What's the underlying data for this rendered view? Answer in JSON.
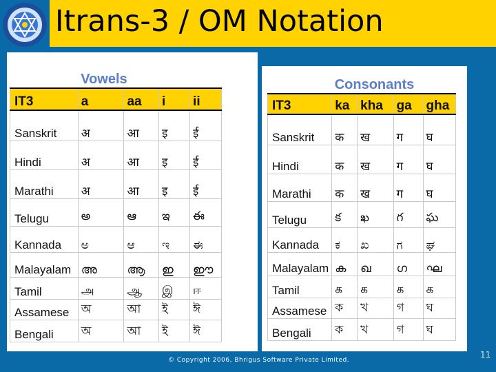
{
  "title": "Itrans-3 / OM Notation",
  "footer": "© Copyright 2006, Bhrigus Software Private Limited.",
  "page_number": "11",
  "vowels": {
    "heading": "Vowels",
    "rows": [
      {
        "label": "IT3",
        "cells": [
          "a",
          "aa",
          "i",
          "ii"
        ]
      },
      {
        "label": "Sanskrit",
        "cells": [
          "अ",
          "आ",
          "इ",
          "ई"
        ]
      },
      {
        "label": "Hindi",
        "cells": [
          "अ",
          "आ",
          "इ",
          "ई"
        ]
      },
      {
        "label": "Marathi",
        "cells": [
          "अ",
          "आ",
          "इ",
          "ई"
        ]
      },
      {
        "label": "Telugu",
        "cells": [
          "అ",
          "ఆ",
          "ఇ",
          "ఈ"
        ]
      },
      {
        "label": "Kannada",
        "cells": [
          "ಅ",
          "ಆ",
          "ಇ",
          "ಈ"
        ]
      },
      {
        "label": "Malayalam",
        "cells": [
          "അ",
          "ആ",
          "ഇ",
          "ഈ"
        ]
      },
      {
        "label": "Tamil",
        "cells": [
          "அ",
          "ஆ",
          "இ",
          "ஈ"
        ]
      },
      {
        "label": "Assamese",
        "cells": [
          "অ",
          "আ",
          "ই",
          "ঈ"
        ]
      },
      {
        "label": "Bengali",
        "cells": [
          "অ",
          "আ",
          "ই",
          "ঈ"
        ]
      }
    ]
  },
  "consonants": {
    "heading": "Consonants",
    "rows": [
      {
        "label": "IT3",
        "cells": [
          "ka",
          "kha",
          "ga",
          "gha"
        ]
      },
      {
        "label": "Sanskrit",
        "cells": [
          "क",
          "ख",
          "ग",
          "घ"
        ]
      },
      {
        "label": "Hindi",
        "cells": [
          "क",
          "ख",
          "ग",
          "घ"
        ]
      },
      {
        "label": "Marathi",
        "cells": [
          "क",
          "ख",
          "ग",
          "घ"
        ]
      },
      {
        "label": "Telugu",
        "cells": [
          "క",
          "ఖ",
          "గ",
          "ఘ"
        ]
      },
      {
        "label": "Kannada",
        "cells": [
          "ಕ",
          "ಖ",
          "ಗ",
          "ಘ"
        ]
      },
      {
        "label": "Malayalam",
        "cells": [
          "ക",
          "ഖ",
          "ഗ",
          "ഘ"
        ]
      },
      {
        "label": "Tamil",
        "cells": [
          "க",
          "க",
          "க",
          "க"
        ]
      },
      {
        "label": "Assamese",
        "cells": [
          "ক",
          "খ",
          "গ",
          "ঘ"
        ]
      },
      {
        "label": "Bengali",
        "cells": [
          "ক",
          "খ",
          "গ",
          "ঘ"
        ]
      }
    ]
  }
}
